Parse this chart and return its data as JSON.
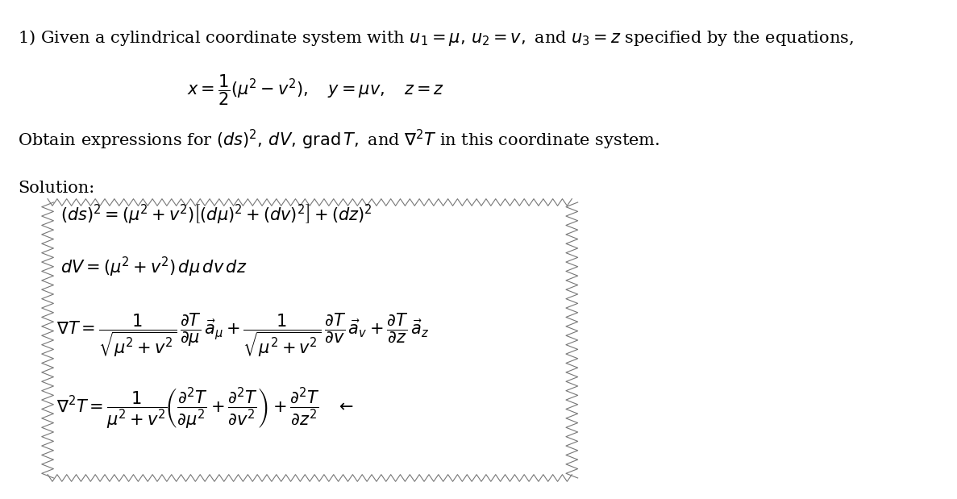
{
  "background_color": "#ffffff",
  "fig_width": 11.87,
  "fig_height": 6.19,
  "dpi": 100,
  "line1": "1) Given a cylindrical coordinate system with $u_1 = \\mu,\\, u_2 = v,$ and $u_3 = z$ specified by the equations,",
  "line2": "$x = \\dfrac{1}{2}(\\mu^2 - v^2), \\quad y = \\mu v, \\quad z = z$",
  "line3": "Obtain expressions for $(ds)^2,\\, dV,\\, \\text{grad}\\, T,$ and $\\nabla^2 T$ in this coordinate system.",
  "solution_label": "Solution:",
  "eq1": "$(ds)^2 = (\\mu^2 + v^2)\\left[(d\\mu)^2 + (dv)^2\\right] + (dz)^2$",
  "eq2": "$dV = (\\mu^2 + v^2)\\,d\\mu\\,dv\\,dz$",
  "eq3": "$\\nabla T = \\dfrac{1}{\\sqrt{\\mu^2 + v^2}}\\,\\dfrac{\\partial T}{\\partial \\mu}\\,\\vec{a}_{\\mu} + \\dfrac{1}{\\sqrt{\\mu^2 + v^2}}\\,\\dfrac{\\partial T}{\\partial v}\\,\\vec{a}_{v} + \\dfrac{\\partial T}{\\partial z}\\,\\vec{a}_{z}$",
  "eq4": "$\\nabla^2 T = \\dfrac{1}{\\mu^2 + v^2}\\left(\\dfrac{\\partial^2 T}{\\partial \\mu^2} + \\dfrac{\\partial^2 T}{\\partial v^2}\\right) + \\dfrac{\\partial^2 T}{\\partial z^2} \\leftarrow$",
  "text_color": "#000000",
  "box_color": "#000000",
  "font_size_main": 15,
  "font_size_eq": 14
}
